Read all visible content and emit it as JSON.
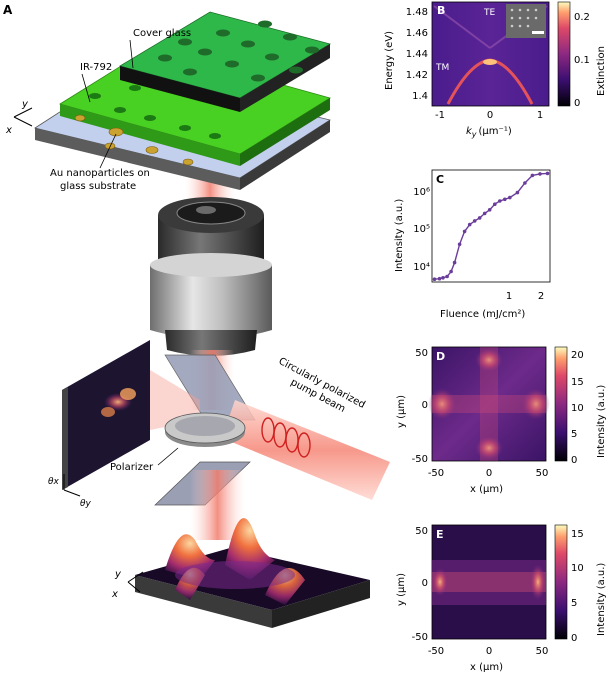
{
  "panel_a": {
    "letter": "A",
    "labels": {
      "cover_glass": "Cover glass",
      "ir792": "IR-792",
      "au_line1": "Au nanoparticles on",
      "au_line2": "glass substrate",
      "circ_line1": "Circularly polarized",
      "circ_line2": "pump beam",
      "polarizer": "Polarizer",
      "axis_y": "y",
      "axis_x": "x",
      "theta_x": "θx",
      "theta_y": "θy",
      "axis_y2": "y",
      "axis_x2": "x"
    },
    "colors": {
      "green": "#3bc41e",
      "pump": "#f08070",
      "substrate": "#b8c8e8"
    }
  },
  "chart_data": [
    {
      "panel": "B",
      "type": "heatmap",
      "xlabel": "k",
      "xlabel_sub": "y",
      "xlabel_unit": "(μm⁻¹)",
      "ylabel": "Energy (eV)",
      "colorbar_label": "Extinction",
      "xlim": [
        -1.5,
        1.5
      ],
      "ylim": [
        1.37,
        1.5
      ],
      "xticks": [
        "-1",
        "0",
        "1"
      ],
      "yticks": [
        "1.48",
        "1.46",
        "1.44",
        "1.42",
        "1.4"
      ],
      "cbar_ticks": [
        "0.2",
        "0.1",
        "0"
      ],
      "cbar_range": [
        0,
        0.24
      ],
      "annotations": [
        "TE",
        "TM"
      ]
    },
    {
      "panel": "C",
      "type": "line",
      "xlabel": "Fluence (mJ/cm²)",
      "ylabel": "Intensity (a.u.)",
      "log_y": true,
      "xticks": [
        "1",
        "2"
      ],
      "yticks": [
        "10⁶",
        "10⁵",
        "10⁴"
      ],
      "series": [
        {
          "x": [
            0.05,
            0.15,
            0.22,
            0.3,
            0.38,
            0.45,
            0.55,
            0.65,
            0.75,
            0.85,
            0.95,
            1.05,
            1.15,
            1.25,
            1.35,
            1.45,
            1.55,
            1.7,
            1.85,
            2.0,
            2.15,
            2.3
          ],
          "y": [
            3000,
            3100,
            3300,
            3600,
            5000,
            9000,
            30000,
            70000,
            110000,
            140000,
            170000,
            230000,
            290000,
            420000,
            520000,
            580000,
            650000,
            900000,
            1700000,
            2800000,
            3100000,
            3200000
          ]
        }
      ],
      "color": "#6a3d9a"
    },
    {
      "panel": "D",
      "type": "heatmap",
      "xlabel": "x (μm)",
      "ylabel": "y (μm)",
      "colorbar_label": "Intensity (a.u.)",
      "xticks": [
        "-50",
        "0",
        "50"
      ],
      "yticks": [
        "50",
        "0",
        "-50"
      ],
      "cbar_ticks": [
        "20",
        "15",
        "10",
        "5",
        "0"
      ],
      "cbar_range": [
        0,
        22
      ]
    },
    {
      "panel": "E",
      "type": "heatmap",
      "xlabel": "x (μm)",
      "ylabel": "y (μm)",
      "colorbar_label": "Intensity (a.u.)",
      "xticks": [
        "-50",
        "0",
        "50"
      ],
      "yticks": [
        "50",
        "0",
        "-50"
      ],
      "cbar_ticks": [
        "15",
        "10",
        "5",
        "0"
      ],
      "cbar_range": [
        0,
        16
      ]
    }
  ]
}
